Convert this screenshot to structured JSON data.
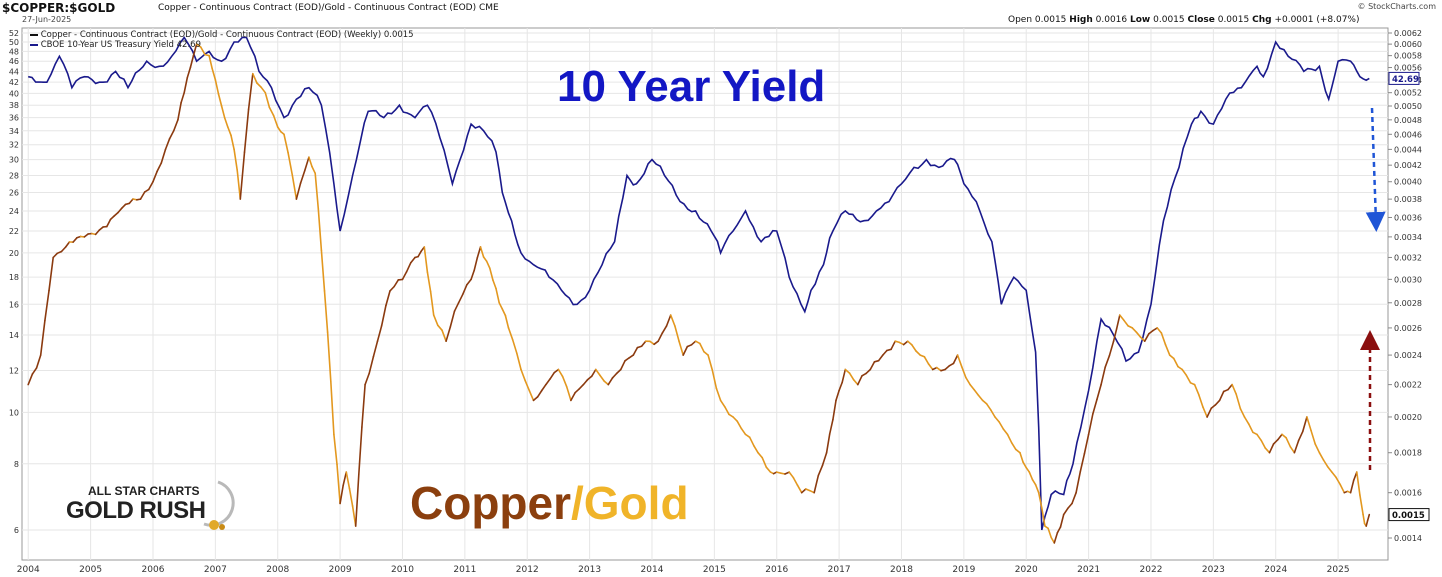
{
  "header": {
    "symbol": "$COPPER:$GOLD",
    "description": "Copper - Continuous Contract (EOD)/Gold - Continuous Contract (EOD)  CME",
    "date": "27-Jun-2025",
    "credit": "© StockCharts.com",
    "ohlc": {
      "open_label": "Open",
      "open": "0.0015",
      "high_label": "High",
      "high": "0.0016",
      "low_label": "Low",
      "low": "0.0015",
      "close_label": "Close",
      "close": "0.0015",
      "chg_label": "Chg",
      "chg": "+0.0001 (+8.07%)"
    }
  },
  "legend": {
    "item1": "Copper - Continuous Contract (EOD)/Gold - Continuous Contract (EOD) (Weekly) 0.0015",
    "item2": "CBOE 10-Year US Treasury Yield 42.69"
  },
  "annotations": {
    "yield_title": "10 Year Yield",
    "copper_word": "Copper",
    "gold_word": "/Gold",
    "logo_line1": "ALL STAR CHARTS",
    "logo_line2": "GOLD RUSH"
  },
  "colors": {
    "yield_line": "#1a1a8c",
    "ratio_line_dark": "#8b3a0f",
    "ratio_line_light": "#e3981f",
    "blue_arrow": "#1f55d6",
    "red_arrow": "#8b0f0f",
    "grid": "#e6e6e6"
  },
  "chart_data": {
    "type": "line",
    "x_ticks": [
      "2004",
      "2005",
      "2006",
      "2007",
      "2008",
      "2009",
      "2010",
      "2011",
      "2012",
      "2013",
      "2014",
      "2015",
      "2016",
      "2017",
      "2018",
      "2019",
      "2020",
      "2021",
      "2022",
      "2023",
      "2024",
      "2025"
    ],
    "xlim": [
      2003.9,
      2025.8
    ],
    "left_axis": {
      "ticks": [
        "6",
        "8",
        "10",
        "12",
        "14",
        "16",
        "18",
        "20",
        "22",
        "24",
        "26",
        "28",
        "30",
        "32",
        "34",
        "36",
        "38",
        "40",
        "42",
        "44",
        "46",
        "48",
        "50",
        "52"
      ],
      "scale": "log",
      "series": "CBOE 10-Year US Treasury Yield"
    },
    "right_axis": {
      "ticks": [
        "0.0014",
        "0.0016",
        "0.0018",
        "0.0020",
        "0.0022",
        "0.0024",
        "0.0026",
        "0.0028",
        "0.0030",
        "0.0032",
        "0.0034",
        "0.0036",
        "0.0038",
        "0.0040",
        "0.0042",
        "0.0044",
        "0.0046",
        "0.0048",
        "0.0050",
        "0.0052",
        "0.0054",
        "0.0056",
        "0.0058",
        "0.0060",
        "0.0062"
      ],
      "last_label": "0.0015",
      "series": "Copper - Continuous Contract (EOD)/Gold - Continuous Contract (EOD) (Weekly)"
    },
    "yield_last_label": "42.69",
    "series": [
      {
        "name": "CBOE 10-Year US Treasury Yield",
        "axis": "left",
        "x": [
          2004.0,
          2004.3,
          2004.5,
          2004.7,
          2004.9,
          2005.2,
          2005.4,
          2005.6,
          2005.9,
          2006.1,
          2006.3,
          2006.5,
          2006.7,
          2006.9,
          2007.1,
          2007.3,
          2007.5,
          2007.7,
          2007.9,
          2008.1,
          2008.3,
          2008.5,
          2008.7,
          2008.9,
          2009.0,
          2009.2,
          2009.45,
          2009.7,
          2009.95,
          2010.2,
          2010.4,
          2010.6,
          2010.8,
          2011.1,
          2011.3,
          2011.5,
          2011.6,
          2011.75,
          2011.9,
          2012.1,
          2012.35,
          2012.55,
          2012.8,
          2013.0,
          2013.2,
          2013.4,
          2013.6,
          2013.75,
          2014.0,
          2014.2,
          2014.45,
          2014.7,
          2014.95,
          2015.1,
          2015.3,
          2015.5,
          2015.75,
          2016.0,
          2016.2,
          2016.45,
          2016.55,
          2016.75,
          2016.9,
          2017.1,
          2017.4,
          2017.6,
          2017.8,
          2018.0,
          2018.2,
          2018.4,
          2018.6,
          2018.85,
          2019.0,
          2019.2,
          2019.45,
          2019.6,
          2019.8,
          2020.0,
          2020.15,
          2020.25,
          2020.4,
          2020.6,
          2020.75,
          2021.0,
          2021.2,
          2021.4,
          2021.6,
          2021.8,
          2022.0,
          2022.2,
          2022.45,
          2022.65,
          2022.8,
          2023.0,
          2023.2,
          2023.45,
          2023.7,
          2023.8,
          2024.0,
          2024.2,
          2024.45,
          2024.7,
          2024.85,
          2025.0,
          2025.2,
          2025.35,
          2025.5
        ],
        "values": [
          43,
          42,
          47,
          41,
          43,
          42,
          44,
          41,
          46,
          45,
          47,
          51,
          46,
          48,
          46,
          50,
          51,
          44,
          41,
          36,
          39,
          41,
          38,
          27,
          22,
          28,
          37,
          36,
          38,
          36,
          38,
          33,
          27,
          35,
          34,
          31,
          26,
          23,
          20,
          19,
          18,
          17,
          16,
          17,
          19,
          21,
          28,
          27,
          30,
          28,
          25,
          24,
          22,
          20,
          22,
          24,
          21,
          22,
          18,
          15.5,
          17,
          19,
          22,
          24,
          23,
          24,
          25,
          27,
          29,
          30,
          29,
          30,
          27,
          25,
          21,
          16,
          18,
          17,
          13,
          6,
          7,
          7,
          8,
          11,
          15,
          14,
          12.5,
          13,
          16,
          23,
          29,
          35,
          37,
          35,
          39,
          41,
          45,
          43,
          50,
          47,
          44,
          45,
          39,
          46,
          46,
          43,
          42.69
        ]
      },
      {
        "name": "Copper - Continuous Contract (EOD)/Gold - Continuous Contract (EOD) (Weekly)",
        "axis": "right",
        "x": [
          2004.0,
          2004.2,
          2004.4,
          2004.6,
          2004.9,
          2005.2,
          2005.5,
          2005.8,
          2006.0,
          2006.2,
          2006.4,
          2006.5,
          2006.6,
          2006.7,
          2006.9,
          2007.0,
          2007.1,
          2007.2,
          2007.3,
          2007.4,
          2007.6,
          2007.8,
          2008.0,
          2008.1,
          2008.3,
          2008.5,
          2008.6,
          2008.75,
          2008.9,
          2009.0,
          2009.1,
          2009.25,
          2009.4,
          2009.6,
          2009.8,
          2010.0,
          2010.2,
          2010.35,
          2010.5,
          2010.7,
          2010.9,
          2011.1,
          2011.25,
          2011.4,
          2011.55,
          2011.7,
          2011.9,
          2012.1,
          2012.3,
          2012.5,
          2012.7,
          2012.9,
          2013.1,
          2013.3,
          2013.5,
          2013.7,
          2013.9,
          2014.1,
          2014.3,
          2014.5,
          2014.7,
          2014.9,
          2015.1,
          2015.3,
          2015.5,
          2015.7,
          2015.9,
          2016.0,
          2016.2,
          2016.4,
          2016.6,
          2016.8,
          2016.95,
          2017.1,
          2017.3,
          2017.5,
          2017.7,
          2017.9,
          2018.1,
          2018.3,
          2018.5,
          2018.7,
          2018.9,
          2019.1,
          2019.3,
          2019.5,
          2019.7,
          2019.9,
          2020.05,
          2020.2,
          2020.3,
          2020.45,
          2020.6,
          2020.8,
          2021.0,
          2021.2,
          2021.4,
          2021.5,
          2021.7,
          2021.9,
          2022.1,
          2022.3,
          2022.5,
          2022.7,
          2022.9,
          2023.1,
          2023.3,
          2023.5,
          2023.7,
          2023.9,
          2024.1,
          2024.3,
          2024.5,
          2024.7,
          2024.9,
          2025.1,
          2025.2,
          2025.3,
          2025.4,
          2025.45,
          2025.5
        ],
        "values": [
          0.0022,
          0.0024,
          0.0032,
          0.0033,
          0.0034,
          0.0035,
          0.0037,
          0.0038,
          0.004,
          0.0044,
          0.0048,
          0.0052,
          0.0056,
          0.006,
          0.0058,
          0.0054,
          0.005,
          0.0047,
          0.0044,
          0.0038,
          0.0055,
          0.0052,
          0.0047,
          0.0046,
          0.0038,
          0.0043,
          0.0041,
          0.0029,
          0.0019,
          0.00155,
          0.0017,
          0.00145,
          0.0022,
          0.0025,
          0.0029,
          0.003,
          0.0032,
          0.0033,
          0.0027,
          0.0025,
          0.0028,
          0.003,
          0.0033,
          0.0031,
          0.0028,
          0.0026,
          0.0023,
          0.0021,
          0.0022,
          0.0023,
          0.0021,
          0.0022,
          0.0023,
          0.0022,
          0.0023,
          0.0024,
          0.0025,
          0.0025,
          0.0027,
          0.0024,
          0.0025,
          0.0024,
          0.0021,
          0.002,
          0.0019,
          0.0018,
          0.0017,
          0.0017,
          0.0017,
          0.0016,
          0.0016,
          0.0018,
          0.0021,
          0.0023,
          0.0022,
          0.0023,
          0.0024,
          0.0025,
          0.0025,
          0.0024,
          0.0023,
          0.0023,
          0.0024,
          0.0022,
          0.0021,
          0.002,
          0.0019,
          0.0018,
          0.0017,
          0.0016,
          0.00145,
          0.00138,
          0.0015,
          0.0016,
          0.0019,
          0.0022,
          0.0025,
          0.0027,
          0.0026,
          0.0025,
          0.0026,
          0.0024,
          0.0023,
          0.0022,
          0.002,
          0.0021,
          0.0022,
          0.002,
          0.0019,
          0.0018,
          0.0019,
          0.0018,
          0.002,
          0.0018,
          0.0017,
          0.0016,
          0.0016,
          0.0017,
          0.0015,
          0.00145,
          0.0015
        ]
      }
    ]
  }
}
